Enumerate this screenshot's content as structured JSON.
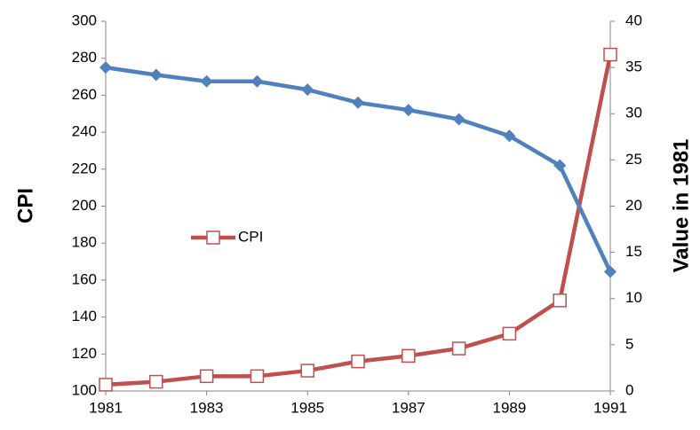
{
  "chart_data": {
    "type": "line",
    "y_label": "CPI",
    "y2_label": "Value in 1981",
    "x": [
      1981,
      1982,
      1983,
      1984,
      1985,
      1986,
      1987,
      1988,
      1989,
      1990,
      1991
    ],
    "xlim": [
      1981,
      1991
    ],
    "xticks": [
      1981,
      1983,
      1985,
      1987,
      1989,
      1991
    ],
    "ylim": [
      100,
      300
    ],
    "yticks": [
      100,
      120,
      140,
      160,
      180,
      200,
      220,
      240,
      260,
      280,
      300
    ],
    "y2lim": [
      0,
      40
    ],
    "y2ticks": [
      0,
      5,
      10,
      15,
      20,
      25,
      30,
      35,
      40
    ],
    "grid": false,
    "series": [
      {
        "name": "CPI",
        "color": "#c0504d",
        "marker": "square",
        "values": [
          103.4,
          105,
          108,
          108,
          111,
          116,
          119,
          123,
          131,
          149,
          282
        ]
      },
      {
        "color": "#4f81bd",
        "marker": "diamond",
        "axis": "y2",
        "values": [
          35.0,
          34.2,
          33.5,
          33.5,
          32.6,
          31.2,
          30.4,
          29.4,
          27.6,
          24.4,
          12.9
        ]
      }
    ]
  }
}
